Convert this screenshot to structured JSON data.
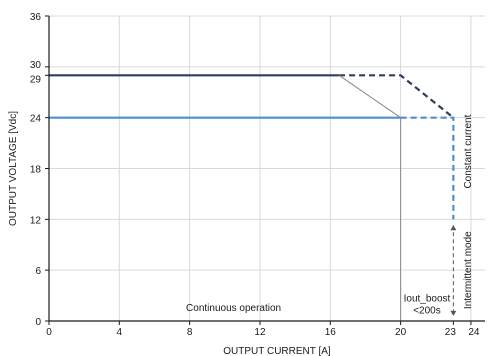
{
  "chart_data": {
    "type": "line",
    "xlabel": "OUTPUT CURRENT [A]",
    "ylabel": "OUTPUT VOLTAGE [Vdc]",
    "xlim": [
      0,
      24.8
    ],
    "ylim": [
      0,
      36
    ],
    "x_ticks": [
      {
        "value": 0,
        "label": "0"
      },
      {
        "value": 4,
        "label": "4"
      },
      {
        "value": 8,
        "label": "8"
      },
      {
        "value": 12,
        "label": "12"
      },
      {
        "value": 16,
        "label": "16"
      },
      {
        "value": 20,
        "label": "20"
      },
      {
        "value": 23,
        "label": "23"
      },
      {
        "value": 24,
        "label": "24"
      }
    ],
    "y_ticks": [
      {
        "value": 0,
        "label": "0"
      },
      {
        "value": 6,
        "label": "6"
      },
      {
        "value": 12,
        "label": "12"
      },
      {
        "value": 18,
        "label": "18"
      },
      {
        "value": 24,
        "label": "24"
      },
      {
        "value": 29,
        "label": "29"
      },
      {
        "value": 30,
        "label": "30"
      },
      {
        "value": 36,
        "label": "36"
      }
    ],
    "grid": true,
    "series": [
      {
        "color": "#2f3e5c",
        "style": "solid",
        "x": [
          0,
          16.5
        ],
        "y": [
          29,
          29
        ]
      },
      {
        "color": "#2f3e5c",
        "style": "dashed",
        "x": [
          16.5,
          20,
          23
        ],
        "y": [
          29,
          29,
          24
        ]
      },
      {
        "color": "#4a8fd1",
        "style": "solid",
        "x": [
          0,
          20
        ],
        "y": [
          24,
          24
        ]
      },
      {
        "color": "#4a8fd1",
        "style": "dashed",
        "x": [
          20,
          23,
          23
        ],
        "y": [
          24,
          24,
          12
        ]
      },
      {
        "color": "#888888",
        "style": "solid",
        "x": [
          16.5,
          20,
          20
        ],
        "y": [
          29,
          24,
          0
        ]
      }
    ],
    "annotations": [
      {
        "text": "Continuous operation",
        "x": 10.5,
        "y": 1.2
      },
      {
        "text": "Iout_boost",
        "x": 21.5,
        "y": 2.3
      },
      {
        "text": "<200s",
        "x": 21.5,
        "y": 0.9
      },
      {
        "text": "Constant current",
        "x": 24.0,
        "y": 20,
        "rotate": -90
      },
      {
        "text": "Intermittent mode",
        "x": 24.0,
        "y": 6,
        "rotate": -90
      }
    ]
  }
}
